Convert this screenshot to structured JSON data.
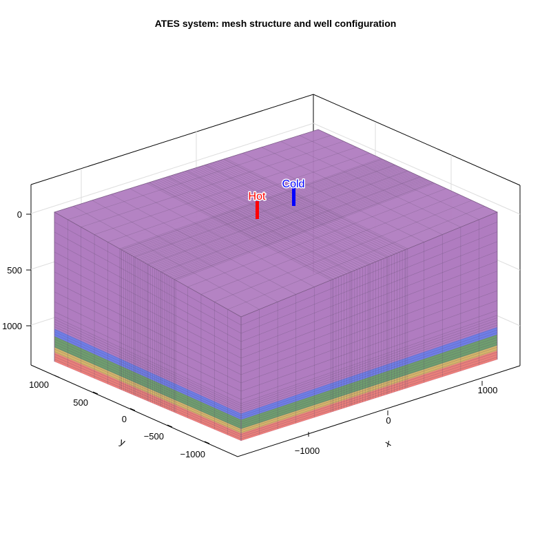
{
  "title": "ATES system: mesh structure and well configuration",
  "axes": {
    "x_label": "x",
    "y_label": "y",
    "x_ticks": [
      "−1000",
      "0",
      "1000"
    ],
    "y_ticks": [
      "1000",
      "500",
      "0",
      "−500",
      "−1000"
    ],
    "z_ticks": [
      "0",
      "500",
      "1000"
    ]
  },
  "layers": [
    {
      "name": "upper",
      "color": "#b07cc0"
    },
    {
      "name": "blue",
      "color": "#6f7ee8"
    },
    {
      "name": "green",
      "color": "#6f9e6f"
    },
    {
      "name": "yellow",
      "color": "#d6b56a"
    },
    {
      "name": "red",
      "color": "#ea7f7b"
    }
  ],
  "wells": [
    {
      "label": "Hot",
      "color": "#ff0000"
    },
    {
      "label": "Cold",
      "color": "#0000ff"
    }
  ]
}
